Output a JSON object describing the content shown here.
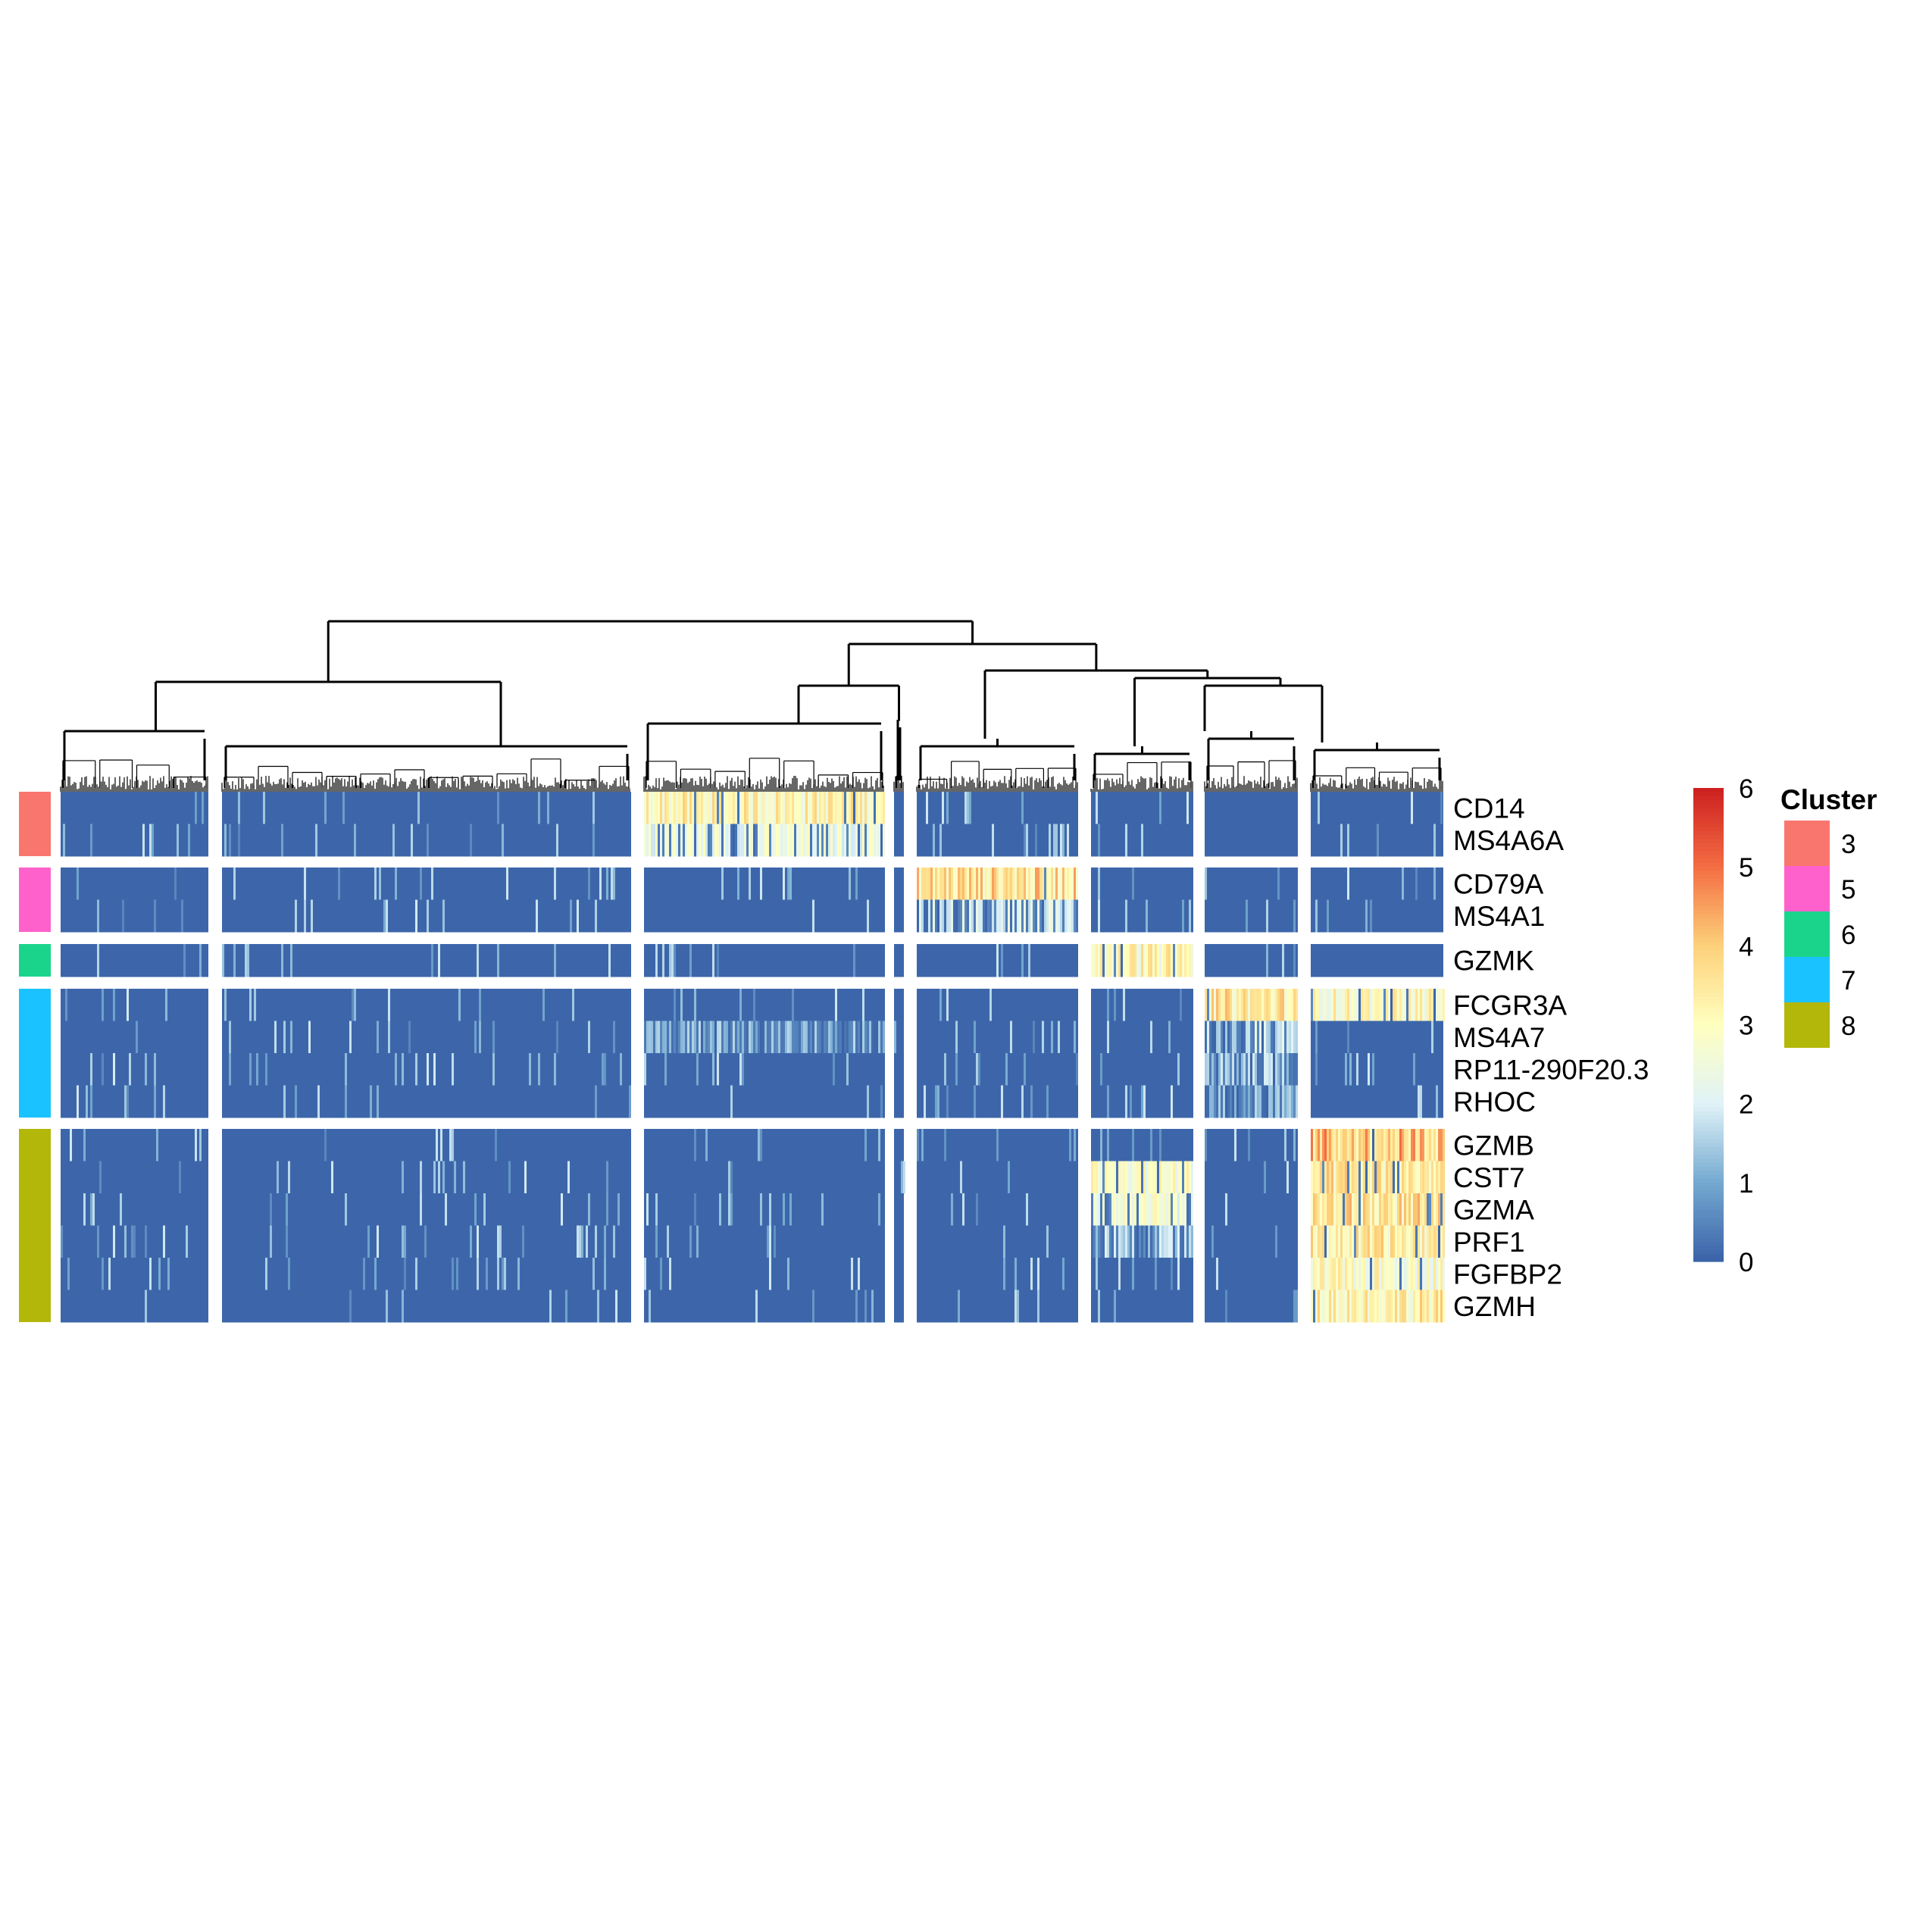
{
  "chart_data": {
    "type": "heatmap",
    "title": "",
    "xlabel": "",
    "ylabel": "",
    "rows": [
      "CD14",
      "MS4A6A",
      "CD79A",
      "MS4A1",
      "GZMK",
      "FCGR3A",
      "MS4A7",
      "RP11-290F20.3",
      "RHOC",
      "GZMB",
      "CST7",
      "GZMA",
      "PRF1",
      "FGFBP2",
      "GZMH"
    ],
    "row_groups": [
      {
        "cluster": "3",
        "color": "#F8766D",
        "genes": [
          "CD14",
          "MS4A6A"
        ]
      },
      {
        "cluster": "5",
        "color": "#FF61CC",
        "genes": [
          "CD79A",
          "MS4A1"
        ]
      },
      {
        "cluster": "6",
        "color": "#1BD48C",
        "genes": [
          "GZMK"
        ]
      },
      {
        "cluster": "7",
        "color": "#1AC3FF",
        "genes": [
          "FCGR3A",
          "MS4A7",
          "RP11-290F20.3",
          "RHOC"
        ]
      },
      {
        "cluster": "8",
        "color": "#B3B70A",
        "genes": [
          "GZMB",
          "CST7",
          "GZMA",
          "PRF1",
          "FGFBP2",
          "GZMH"
        ]
      }
    ],
    "column_slices": 8,
    "mean_expression": [
      [
        0.1,
        0.1,
        3.1,
        0.3,
        0.1,
        0.1,
        0.2,
        0.1
      ],
      [
        0.1,
        0.1,
        2.4,
        0.1,
        0.1,
        0.1,
        0.2,
        0.1
      ],
      [
        0.2,
        0.1,
        0.1,
        0.1,
        3.5,
        0.1,
        0.1,
        0.1
      ],
      [
        0.1,
        0.1,
        0.1,
        0.1,
        2.0,
        0.1,
        0.1,
        0.1
      ],
      [
        0.1,
        0.1,
        0.1,
        0.1,
        0.1,
        3.0,
        0.1,
        0.1
      ],
      [
        0.1,
        0.1,
        0.6,
        0.2,
        0.1,
        0.1,
        3.3,
        2.9
      ],
      [
        0.1,
        0.1,
        1.3,
        0.1,
        0.1,
        0.1,
        1.8,
        0.1
      ],
      [
        0.1,
        0.1,
        0.8,
        0.1,
        0.1,
        0.1,
        1.5,
        0.1
      ],
      [
        0.1,
        0.1,
        0.5,
        0.1,
        0.1,
        0.1,
        1.3,
        0.6
      ],
      [
        0.1,
        0.1,
        0.2,
        0.1,
        0.1,
        0.2,
        0.2,
        3.9
      ],
      [
        0.2,
        0.1,
        0.1,
        0.1,
        0.2,
        2.7,
        0.3,
        3.3
      ],
      [
        0.2,
        0.1,
        0.4,
        0.1,
        0.3,
        2.5,
        0.3,
        3.4
      ],
      [
        0.1,
        0.1,
        0.1,
        0.1,
        0.1,
        1.6,
        0.1,
        3.2
      ],
      [
        0.1,
        0.1,
        0.1,
        0.1,
        0.1,
        0.3,
        0.1,
        2.8
      ],
      [
        0.1,
        0.1,
        0.1,
        0.1,
        0.1,
        0.3,
        0.1,
        3.2
      ]
    ],
    "color_scale": {
      "min": 0,
      "max": 6,
      "ticks": [
        "0",
        "1",
        "2",
        "3",
        "4",
        "5",
        "6"
      ],
      "colors": [
        "#3A62A8",
        "#74A9D0",
        "#E0F3F8",
        "#FFFFBF",
        "#FDD17A",
        "#F46D43",
        "#CC1F1F"
      ]
    },
    "legend": {
      "title": "Cluster",
      "placement": "right",
      "entries": [
        {
          "label": "3",
          "color": "#F8766D"
        },
        {
          "label": "5",
          "color": "#FF61CC"
        },
        {
          "label": "6",
          "color": "#1BD48C"
        },
        {
          "label": "7",
          "color": "#1AC3FF"
        },
        {
          "label": "8",
          "color": "#B3B70A"
        }
      ]
    },
    "dendrogram": "column, top"
  }
}
